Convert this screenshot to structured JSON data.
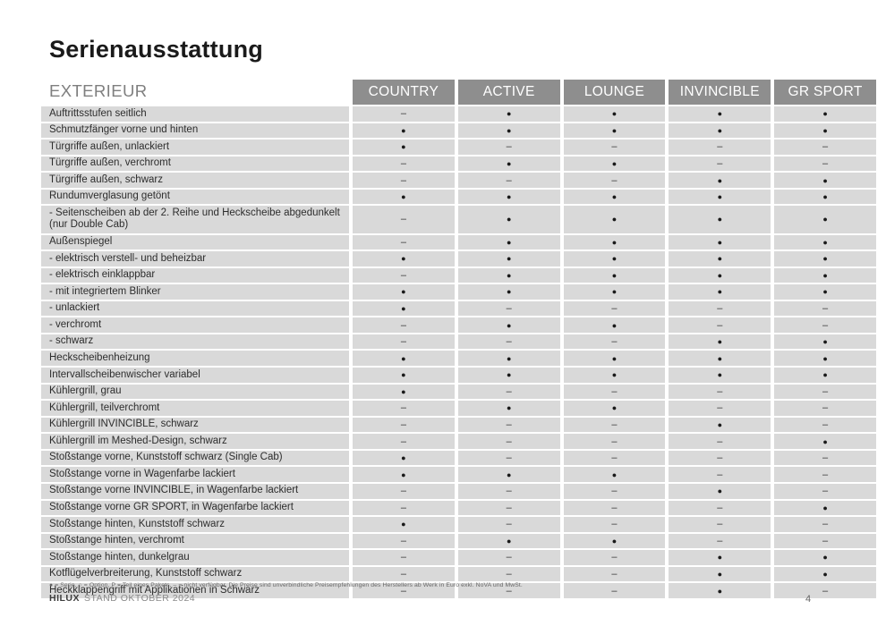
{
  "page": {
    "title": "Serienausstattung"
  },
  "table": {
    "section": "EXTERIEUR",
    "columns": [
      "COUNTRY",
      "ACTIVE",
      "LOUNGE",
      "INVINCIBLE",
      "GR SPORT"
    ],
    "symbols": {
      "available": "●",
      "not_available": "–"
    },
    "colors": {
      "row_background": "#d9d9d9",
      "header_background": "#8e8e8e",
      "header_text": "#ffffff"
    },
    "rows": [
      {
        "label": "Auftrittsstufen seitlich",
        "values": [
          "–",
          "●",
          "●",
          "●",
          "●"
        ]
      },
      {
        "label": "Schmutzfänger vorne und hinten",
        "values": [
          "●",
          "●",
          "●",
          "●",
          "●"
        ]
      },
      {
        "label": "Türgriffe außen, unlackiert",
        "values": [
          "●",
          "–",
          "–",
          "–",
          "–"
        ]
      },
      {
        "label": "Türgriffe außen, verchromt",
        "values": [
          "–",
          "●",
          "●",
          "–",
          "–"
        ]
      },
      {
        "label": "Türgriffe außen, schwarz",
        "values": [
          "–",
          "–",
          "–",
          "●",
          "●"
        ]
      },
      {
        "label": "Rundumverglasung getönt",
        "values": [
          "●",
          "●",
          "●",
          "●",
          "●"
        ]
      },
      {
        "label": "- Seitenscheiben ab der 2. Reihe und Heckscheibe abgedunkelt (nur Double Cab)",
        "values": [
          "–",
          "●",
          "●",
          "●",
          "●"
        ]
      },
      {
        "label": "Außenspiegel",
        "values": [
          "–",
          "●",
          "●",
          "●",
          "●"
        ]
      },
      {
        "label": "- elektrisch verstell- und beheizbar",
        "values": [
          "●",
          "●",
          "●",
          "●",
          "●"
        ]
      },
      {
        "label": "- elektrisch einklappbar",
        "values": [
          "–",
          "●",
          "●",
          "●",
          "●"
        ]
      },
      {
        "label": "- mit integriertem Blinker",
        "values": [
          "●",
          "●",
          "●",
          "●",
          "●"
        ]
      },
      {
        "label": "- unlackiert",
        "values": [
          "●",
          "–",
          "–",
          "–",
          "–"
        ]
      },
      {
        "label": "- verchromt",
        "values": [
          "–",
          "●",
          "●",
          "–",
          "–"
        ]
      },
      {
        "label": "- schwarz",
        "values": [
          "–",
          "–",
          "–",
          "●",
          "●"
        ]
      },
      {
        "label": "Heckscheibenheizung",
        "values": [
          "●",
          "●",
          "●",
          "●",
          "●"
        ]
      },
      {
        "label": "Intervallscheibenwischer variabel",
        "values": [
          "●",
          "●",
          "●",
          "●",
          "●"
        ]
      },
      {
        "label": "Kühlergrill, grau",
        "values": [
          "●",
          "–",
          "–",
          "–",
          "–"
        ]
      },
      {
        "label": "Kühlergrill, teilverchromt",
        "values": [
          "–",
          "●",
          "●",
          "–",
          "–"
        ]
      },
      {
        "label": "Kühlergrill INVINCIBLE, schwarz",
        "values": [
          "–",
          "–",
          "–",
          "●",
          "–"
        ]
      },
      {
        "label": "Kühlergrill im Meshed-Design, schwarz",
        "values": [
          "–",
          "–",
          "–",
          "–",
          "●"
        ]
      },
      {
        "label": "Stoßstange vorne, Kunststoff schwarz (Single Cab)",
        "values": [
          "●",
          "–",
          "–",
          "–",
          "–"
        ]
      },
      {
        "label": "Stoßstange vorne in Wagenfarbe lackiert",
        "values": [
          "●",
          "●",
          "●",
          "–",
          "–"
        ]
      },
      {
        "label": "Stoßstange vorne INVINCIBLE, in Wagenfarbe lackiert",
        "values": [
          "–",
          "–",
          "–",
          "●",
          "–"
        ]
      },
      {
        "label": "Stoßstange vorne GR SPORT, in Wagenfarbe lackiert",
        "values": [
          "–",
          "–",
          "–",
          "–",
          "●"
        ]
      },
      {
        "label": "Stoßstange hinten, Kunststoff schwarz",
        "values": [
          "●",
          "–",
          "–",
          "–",
          "–"
        ]
      },
      {
        "label": "Stoßstange hinten, verchromt",
        "values": [
          "–",
          "●",
          "●",
          "–",
          "–"
        ]
      },
      {
        "label": "Stoßstange hinten, dunkelgrau",
        "values": [
          "–",
          "–",
          "–",
          "●",
          "●"
        ]
      },
      {
        "label": "Kotflügelverbreiterung, Kunststoff schwarz",
        "values": [
          "–",
          "–",
          "–",
          "●",
          "●"
        ]
      },
      {
        "label": "Heckklappengriff mit Applikationen in Schwarz",
        "values": [
          "–",
          "–",
          "–",
          "●",
          "–"
        ]
      }
    ]
  },
  "footer": {
    "footnote": "● = Serie, ○ = Option, P = Teil eines Pakets, – = nicht verfügbar. Die Preise sind unverbindliche Preisempfehlungen des Herstellers ab Werk in Euro exkl. NoVA und MwSt.",
    "model": "HILUX",
    "stand": "STAND OKTOBER 2024",
    "page_number": "4"
  }
}
